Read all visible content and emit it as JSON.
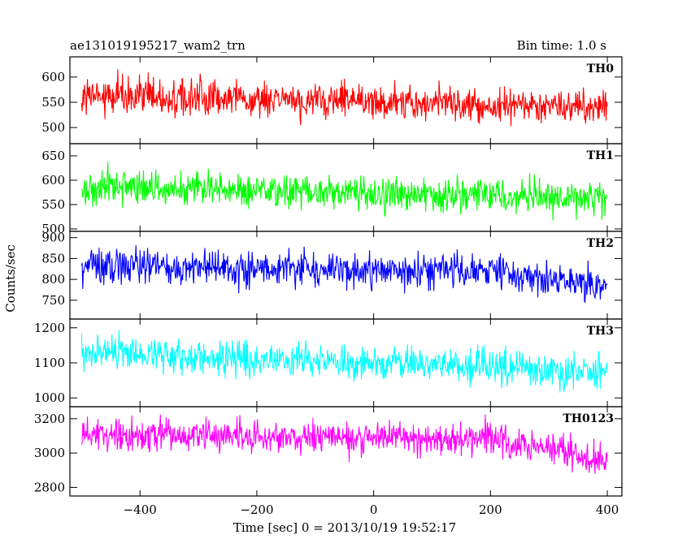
{
  "chart_data": {
    "type": "line",
    "title_left": "ae131019195217_wam2_trn",
    "title_right": "Bin time: 1.0 s",
    "xlabel": "Time [sec] 0 = 2013/10/19 19:52:17",
    "ylabel": "Counts/sec",
    "xlim": [
      -520,
      425
    ],
    "x_ticks": [
      -400,
      -200,
      0,
      200,
      400
    ],
    "x_start": -500,
    "x_end": 400,
    "grid": false,
    "panels": [
      {
        "name": "TH0",
        "color": "#ff0000",
        "ylim": [
          468,
          640
        ],
        "y_ticks": [
          500,
          550,
          600
        ],
        "trend": [
          [
            -500,
            565
          ],
          [
            400,
            540
          ]
        ],
        "noise_amplitude": 32
      },
      {
        "name": "TH1",
        "color": "#00ff00",
        "ylim": [
          495,
          675
        ],
        "y_ticks": [
          500,
          550,
          600,
          650
        ],
        "trend": [
          [
            -500,
            585
          ],
          [
            400,
            565
          ]
        ],
        "noise_amplitude": 32
      },
      {
        "name": "TH2",
        "color": "#0000ff",
        "ylim": [
          705,
          915
        ],
        "y_ticks": [
          750,
          800,
          850,
          900
        ],
        "trend": [
          [
            -500,
            835
          ],
          [
            200,
            818
          ],
          [
            300,
            800
          ],
          [
            400,
            782
          ]
        ],
        "noise_amplitude": 38
      },
      {
        "name": "TH3",
        "color": "#00ffff",
        "ylim": [
          975,
          1225
        ],
        "y_ticks": [
          1000,
          1100,
          1200
        ],
        "trend": [
          [
            -500,
            1130
          ],
          [
            400,
            1075
          ]
        ],
        "noise_amplitude": 45
      },
      {
        "name": "TH0123",
        "color": "#ff00ff",
        "ylim": [
          2750,
          3270
        ],
        "y_ticks": [
          2800,
          3000,
          3200
        ],
        "trend": [
          [
            -500,
            3110
          ],
          [
            200,
            3080
          ],
          [
            400,
            2960
          ]
        ],
        "noise_amplitude": 85
      }
    ]
  }
}
